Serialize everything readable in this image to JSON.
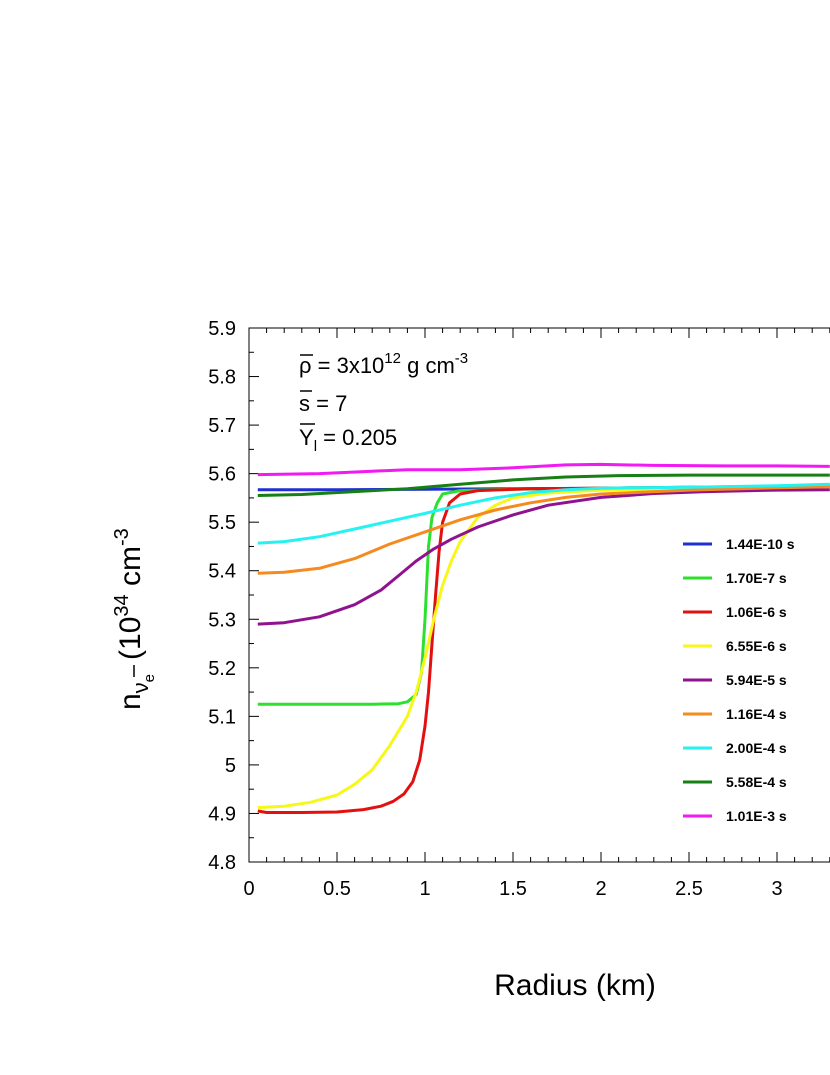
{
  "chart_data": {
    "type": "line",
    "xlabel": "Radius (km)",
    "ylabel": {
      "prefix": "n",
      "nu": "ν",
      "nu_sub": "e",
      "unit_open": "(10",
      "unit_exp": "34",
      "unit_rest": " cm",
      "unit_exp2": "-3"
    },
    "xlim": [
      0,
      3.3
    ],
    "ylim": [
      4.8,
      5.9
    ],
    "x_ticks": [
      "0",
      "0.5",
      "1",
      "1.5",
      "2",
      "2.5",
      "3"
    ],
    "y_ticks": [
      "4.8",
      "4.9",
      "5",
      "5.1",
      "5.2",
      "5.3",
      "5.4",
      "5.5",
      "5.6",
      "5.7",
      "5.8",
      "5.9"
    ],
    "annotations": {
      "rho": {
        "sym": "ρ",
        "text1": " = 3x10",
        "sup": "12",
        "text2": " g cm",
        "sup2": "-3"
      },
      "s": {
        "sym": "s",
        "text": " = 7"
      },
      "y": {
        "sym": "Y",
        "sub": "l",
        "text": " = 0.205"
      }
    },
    "legend_position": "right",
    "series": [
      {
        "name": "1.44E-10 s",
        "color": "#1f2fd1",
        "points": [
          [
            0.05,
            5.567
          ],
          [
            0.5,
            5.567
          ],
          [
            1.0,
            5.568
          ],
          [
            1.5,
            5.569
          ],
          [
            2.0,
            5.57
          ],
          [
            2.5,
            5.572
          ],
          [
            3.0,
            5.573
          ],
          [
            3.3,
            5.574
          ]
        ]
      },
      {
        "name": "1.70E-7 s",
        "color": "#2ee02e",
        "points": [
          [
            0.05,
            5.125
          ],
          [
            0.5,
            5.125
          ],
          [
            0.7,
            5.125
          ],
          [
            0.85,
            5.126
          ],
          [
            0.9,
            5.13
          ],
          [
            0.95,
            5.145
          ],
          [
            0.98,
            5.19
          ],
          [
            1.0,
            5.3
          ],
          [
            1.02,
            5.45
          ],
          [
            1.04,
            5.51
          ],
          [
            1.07,
            5.54
          ],
          [
            1.1,
            5.558
          ],
          [
            1.2,
            5.565
          ],
          [
            1.5,
            5.568
          ],
          [
            2.0,
            5.57
          ],
          [
            2.5,
            5.572
          ],
          [
            3.0,
            5.574
          ],
          [
            3.3,
            5.575
          ]
        ]
      },
      {
        "name": "1.06E-6 s",
        "color": "#e31010",
        "points": [
          [
            0.05,
            4.905
          ],
          [
            0.1,
            4.902
          ],
          [
            0.3,
            4.902
          ],
          [
            0.5,
            4.903
          ],
          [
            0.65,
            4.908
          ],
          [
            0.75,
            4.915
          ],
          [
            0.82,
            4.925
          ],
          [
            0.88,
            4.94
          ],
          [
            0.93,
            4.965
          ],
          [
            0.97,
            5.01
          ],
          [
            1.0,
            5.08
          ],
          [
            1.02,
            5.15
          ],
          [
            1.04,
            5.25
          ],
          [
            1.06,
            5.35
          ],
          [
            1.08,
            5.44
          ],
          [
            1.1,
            5.5
          ],
          [
            1.14,
            5.54
          ],
          [
            1.2,
            5.558
          ],
          [
            1.3,
            5.565
          ],
          [
            1.6,
            5.569
          ],
          [
            2.0,
            5.57
          ],
          [
            2.5,
            5.571
          ],
          [
            3.0,
            5.573
          ],
          [
            3.3,
            5.574
          ]
        ]
      },
      {
        "name": "6.55E-6 s",
        "color": "#f7f71a",
        "points": [
          [
            0.05,
            4.912
          ],
          [
            0.2,
            4.915
          ],
          [
            0.35,
            4.923
          ],
          [
            0.5,
            4.938
          ],
          [
            0.6,
            4.96
          ],
          [
            0.7,
            4.99
          ],
          [
            0.8,
            5.04
          ],
          [
            0.9,
            5.1
          ],
          [
            0.95,
            5.15
          ],
          [
            1.0,
            5.22
          ],
          [
            1.05,
            5.3
          ],
          [
            1.1,
            5.37
          ],
          [
            1.15,
            5.42
          ],
          [
            1.2,
            5.46
          ],
          [
            1.3,
            5.51
          ],
          [
            1.4,
            5.535
          ],
          [
            1.5,
            5.55
          ],
          [
            1.7,
            5.56
          ],
          [
            2.0,
            5.566
          ],
          [
            2.5,
            5.569
          ],
          [
            3.0,
            5.572
          ],
          [
            3.3,
            5.573
          ]
        ]
      },
      {
        "name": "5.94E-5 s",
        "color": "#8f128f",
        "points": [
          [
            0.05,
            5.29
          ],
          [
            0.2,
            5.293
          ],
          [
            0.4,
            5.305
          ],
          [
            0.6,
            5.33
          ],
          [
            0.75,
            5.36
          ],
          [
            0.85,
            5.39
          ],
          [
            0.95,
            5.42
          ],
          [
            1.05,
            5.445
          ],
          [
            1.15,
            5.465
          ],
          [
            1.3,
            5.49
          ],
          [
            1.5,
            5.515
          ],
          [
            1.7,
            5.535
          ],
          [
            2.0,
            5.551
          ],
          [
            2.3,
            5.559
          ],
          [
            2.6,
            5.563
          ],
          [
            3.0,
            5.566
          ],
          [
            3.3,
            5.567
          ]
        ]
      },
      {
        "name": "1.16E-4 s",
        "color": "#f58a1f",
        "points": [
          [
            0.05,
            5.395
          ],
          [
            0.2,
            5.397
          ],
          [
            0.4,
            5.405
          ],
          [
            0.6,
            5.425
          ],
          [
            0.8,
            5.455
          ],
          [
            1.0,
            5.48
          ],
          [
            1.2,
            5.505
          ],
          [
            1.4,
            5.525
          ],
          [
            1.6,
            5.54
          ],
          [
            1.8,
            5.551
          ],
          [
            2.0,
            5.558
          ],
          [
            2.5,
            5.566
          ],
          [
            3.0,
            5.571
          ],
          [
            3.3,
            5.573
          ]
        ]
      },
      {
        "name": "2.00E-4 s",
        "color": "#26f2f2",
        "points": [
          [
            0.05,
            5.457
          ],
          [
            0.2,
            5.46
          ],
          [
            0.4,
            5.47
          ],
          [
            0.6,
            5.486
          ],
          [
            0.8,
            5.502
          ],
          [
            1.0,
            5.518
          ],
          [
            1.2,
            5.535
          ],
          [
            1.4,
            5.55
          ],
          [
            1.6,
            5.561
          ],
          [
            1.8,
            5.567
          ],
          [
            2.0,
            5.57
          ],
          [
            2.5,
            5.572
          ],
          [
            3.0,
            5.575
          ],
          [
            3.3,
            5.578
          ]
        ]
      },
      {
        "name": "5.58E-4 s",
        "color": "#167f16",
        "points": [
          [
            0.05,
            5.555
          ],
          [
            0.3,
            5.557
          ],
          [
            0.6,
            5.563
          ],
          [
            0.9,
            5.569
          ],
          [
            1.2,
            5.578
          ],
          [
            1.5,
            5.587
          ],
          [
            1.8,
            5.593
          ],
          [
            2.1,
            5.596
          ],
          [
            2.5,
            5.597
          ],
          [
            3.0,
            5.597
          ],
          [
            3.3,
            5.597
          ]
        ]
      },
      {
        "name": "1.01E-3 s",
        "color": "#f21af2",
        "points": [
          [
            0.05,
            5.598
          ],
          [
            0.4,
            5.6
          ],
          [
            0.7,
            5.605
          ],
          [
            0.9,
            5.608
          ],
          [
            1.2,
            5.608
          ],
          [
            1.5,
            5.612
          ],
          [
            1.8,
            5.618
          ],
          [
            2.0,
            5.619
          ],
          [
            2.3,
            5.617
          ],
          [
            2.7,
            5.616
          ],
          [
            3.0,
            5.616
          ],
          [
            3.3,
            5.615
          ]
        ]
      }
    ]
  }
}
